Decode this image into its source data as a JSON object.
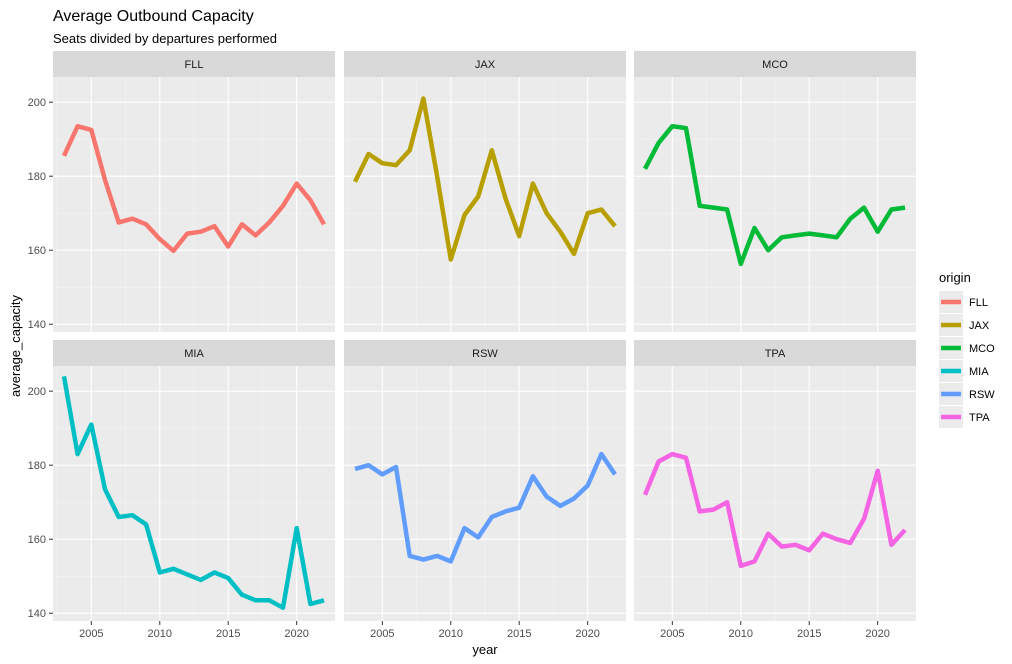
{
  "chart_data": {
    "type": "line",
    "title": "Average Outbound Capacity",
    "subtitle": "Seats divided by departures performed",
    "xlabel": "year",
    "ylabel": "average_capacity",
    "xlim": [
      2002.2,
      2022.8
    ],
    "ylim": [
      137.9,
      206.8
    ],
    "x_ticks": [
      2005,
      2010,
      2015,
      2020
    ],
    "y_ticks": [
      140,
      160,
      180,
      200
    ],
    "grid": true,
    "facets": [
      "FLL",
      "JAX",
      "MCO",
      "MIA",
      "RSW",
      "TPA"
    ],
    "legend": {
      "title": "origin",
      "position": "right"
    },
    "x": [
      2003,
      2004,
      2005,
      2006,
      2007,
      2008,
      2009,
      2010,
      2011,
      2012,
      2013,
      2014,
      2015,
      2016,
      2017,
      2018,
      2019,
      2020,
      2021,
      2022
    ],
    "series": [
      {
        "name": "FLL",
        "color": "#F8766D",
        "values": [
          185.5,
          193.5,
          192.5,
          179,
          167.5,
          168.5,
          167,
          163,
          159.8,
          164.5,
          165,
          166.5,
          161,
          167,
          164,
          167.5,
          172,
          178,
          173.5,
          167
        ]
      },
      {
        "name": "JAX",
        "color": "#B79F00",
        "values": [
          178.5,
          186,
          183.5,
          183,
          187,
          201,
          180,
          157.5,
          169.5,
          174.5,
          187,
          174,
          163.8,
          178,
          170,
          165,
          159,
          170,
          171,
          166.5
        ]
      },
      {
        "name": "MCO",
        "color": "#00BA38",
        "values": [
          182,
          189,
          193.5,
          193,
          172,
          171.5,
          171,
          156.3,
          166,
          160,
          163.5,
          164,
          164.5,
          164,
          163.5,
          168.5,
          171.5,
          165,
          171,
          171.5
        ]
      },
      {
        "name": "MIA",
        "color": "#00BFC4",
        "values": [
          204,
          183,
          191,
          173.5,
          166,
          166.5,
          164,
          151,
          152,
          150.5,
          149,
          151,
          149.5,
          145,
          143.5,
          143.5,
          141.5,
          163,
          142.5,
          143.5
        ]
      },
      {
        "name": "RSW",
        "color": "#619CFF",
        "values": [
          179,
          180,
          177.5,
          179.5,
          155.5,
          154.5,
          155.5,
          154,
          163,
          160.5,
          166,
          167.5,
          168.5,
          177,
          171.5,
          169,
          171,
          174.5,
          183,
          177.5
        ]
      },
      {
        "name": "TPA",
        "color": "#F564E3",
        "values": [
          172,
          181,
          183,
          182,
          167.5,
          168,
          170,
          152.8,
          154,
          161.5,
          158,
          158.5,
          157,
          161.5,
          160,
          159,
          165.5,
          178.5,
          158.5,
          162.5
        ]
      }
    ]
  }
}
